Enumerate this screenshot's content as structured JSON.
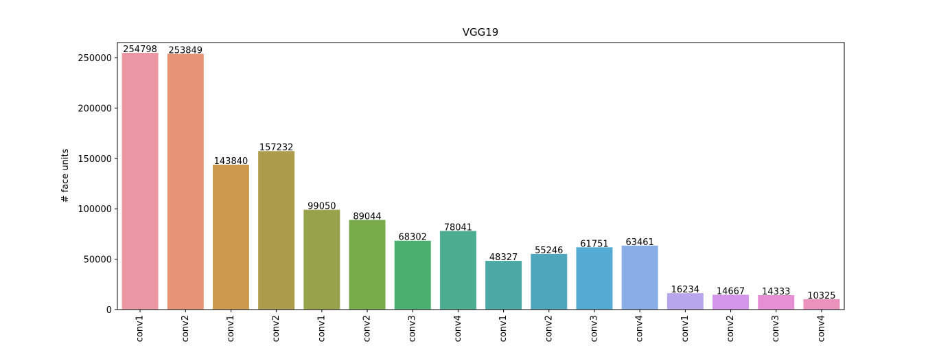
{
  "chart_data": {
    "type": "bar",
    "title": "VGG19",
    "xlabel": "",
    "ylabel": "# face units",
    "ylim": [
      0,
      265000
    ],
    "yticks": [
      0,
      50000,
      100000,
      150000,
      200000,
      250000
    ],
    "grid": false,
    "legend": "none",
    "categories": [
      "conv1",
      "conv2",
      "conv1",
      "conv2",
      "conv1",
      "conv2",
      "conv3",
      "conv4",
      "conv1",
      "conv2",
      "conv3",
      "conv4",
      "conv1",
      "conv2",
      "conv3",
      "conv4"
    ],
    "values": [
      254798,
      253849,
      143840,
      157232,
      99050,
      89044,
      68302,
      78041,
      48327,
      55246,
      61751,
      63461,
      16234,
      14667,
      14333,
      10325
    ],
    "colors": [
      "#ea96a3",
      "#e59575",
      "#cc9a4f",
      "#ad9c4c",
      "#97a34b",
      "#77aa48",
      "#4bb06f",
      "#4cad91",
      "#4ba9a5",
      "#4da6bb",
      "#55aad3",
      "#89aee6",
      "#b8a6ec",
      "#d395e9",
      "#e68fd4",
      "#ea92bb"
    ]
  }
}
